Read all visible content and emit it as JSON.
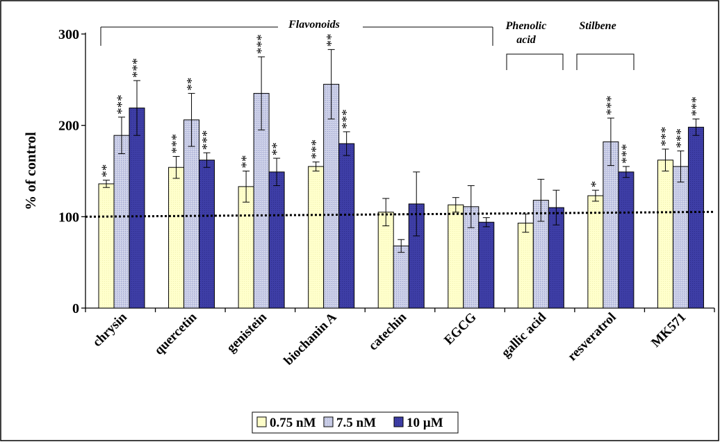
{
  "chart_data": {
    "type": "bar",
    "ylabel": "% of control",
    "ylim": [
      0,
      300
    ],
    "yticks": [
      0,
      100,
      200,
      300
    ],
    "grid": false,
    "legend_position": "bottom",
    "reference_line": 100,
    "categories": [
      "chrysin",
      "quercetin",
      "genistein",
      "biochanin A",
      "catechin",
      "EGCG",
      "gallic acid",
      "resveratrol",
      "MK571"
    ],
    "series": [
      {
        "name": "0.75 nM",
        "color": "#ffffcc",
        "values": [
          136,
          154,
          133,
          155,
          105,
          113,
          93,
          123,
          162
        ],
        "errors": [
          4,
          12,
          17,
          5,
          15,
          8,
          10,
          6,
          12
        ],
        "significance": [
          "**",
          "***",
          "**",
          "***",
          "",
          "",
          "",
          "*",
          "***"
        ]
      },
      {
        "name": "7.5 nM",
        "color": "#c8cce6",
        "values": [
          189,
          206,
          235,
          245,
          68,
          111,
          118,
          182,
          155
        ],
        "errors": [
          20,
          29,
          40,
          38,
          7,
          23,
          23,
          26,
          17
        ],
        "significance": [
          "***",
          "**",
          "***",
          "**",
          "",
          "",
          "",
          "***",
          "***"
        ]
      },
      {
        "name": "10 µM",
        "color": "#3e3ea6",
        "values": [
          219,
          162,
          149,
          180,
          114,
          94,
          110,
          149,
          198
        ],
        "errors": [
          30,
          8,
          15,
          13,
          35,
          5,
          19,
          6,
          9
        ],
        "significance": [
          "***",
          "***",
          "**",
          "***",
          "",
          "",
          "",
          "***",
          "***"
        ]
      }
    ],
    "groups": [
      {
        "label": "Flavonoids",
        "from": 0,
        "to": 5
      },
      {
        "label": "Phenolic acid",
        "lines": [
          "Phenolic",
          "acid"
        ],
        "from": 6,
        "to": 6
      },
      {
        "label": "Stilbene",
        "from": 7,
        "to": 7
      }
    ]
  }
}
